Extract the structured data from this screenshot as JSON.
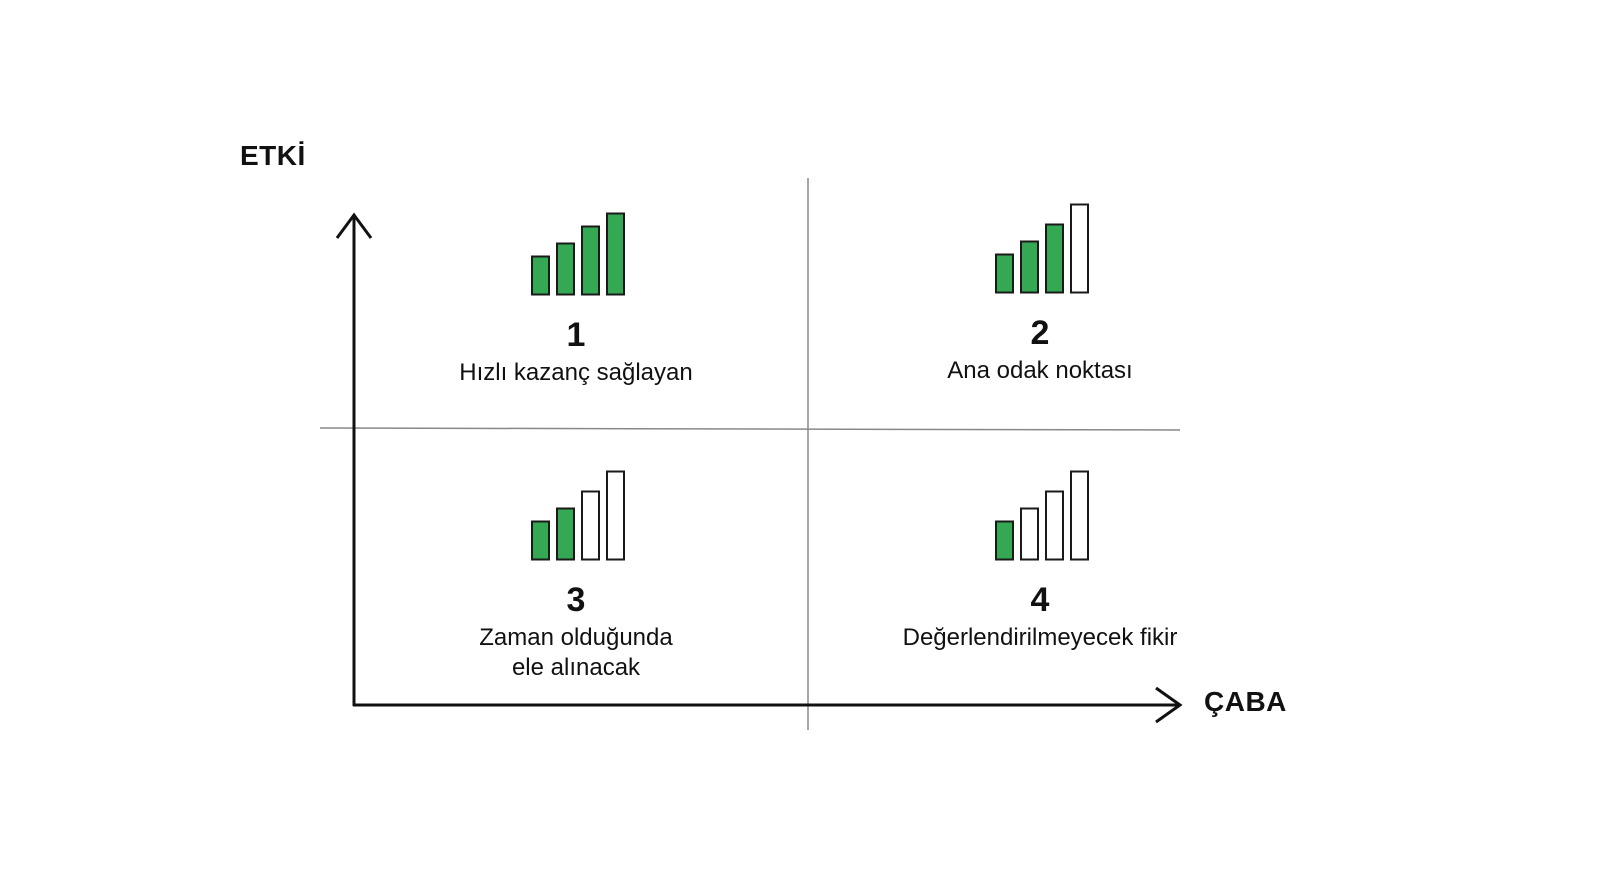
{
  "axes": {
    "y_label": "ETKİ",
    "x_label": "ÇABA"
  },
  "colors": {
    "filled": "#34a853",
    "stroke": "#1a1a1a",
    "empty": "#ffffff",
    "axis": "#111111",
    "divider": "#888888"
  },
  "quadrants": [
    {
      "number": "1",
      "title": "Hızlı kazanç sağlayan",
      "filled_bars": 4,
      "total_bars": 4
    },
    {
      "number": "2",
      "title": "Ana odak noktası",
      "filled_bars": 3,
      "total_bars": 4
    },
    {
      "number": "3",
      "title": "Zaman olduğunda\nele alınacak",
      "filled_bars": 2,
      "total_bars": 4
    },
    {
      "number": "4",
      "title": "Değerlendirilmeyecek fikir",
      "filled_bars": 1,
      "total_bars": 4
    }
  ]
}
